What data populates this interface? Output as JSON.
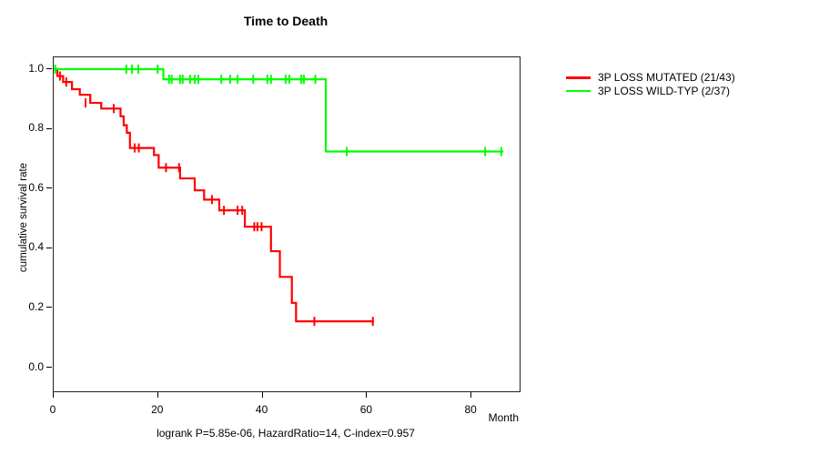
{
  "title": "Time to Death",
  "axes": {
    "x_label": "Month",
    "y_label": "cumulative survival rate",
    "x_ticks": [
      0,
      20,
      40,
      60,
      80
    ],
    "y_ticks": [
      "0.0",
      "0.2",
      "0.4",
      "0.6",
      "0.8",
      "1.0"
    ]
  },
  "legend": [
    {
      "label": "3P LOSS MUTATED (21/43)",
      "color": "#ff0000"
    },
    {
      "label": "3P LOSS WILD-TYP (2/37)",
      "color": "#00ff00"
    }
  ],
  "caption": "logrank P=5.85e-06, HazardRatio=14, C-index=0.957",
  "chart_data": {
    "type": "line",
    "subtype": "kaplan-meier-step",
    "title": "Time to Death",
    "xlabel": "Month",
    "ylabel": "cumulative survival rate",
    "xlim": [
      0,
      89
    ],
    "ylim": [
      0.0,
      1.0
    ],
    "grid": false,
    "legend_position": "right-outside",
    "annotation": "logrank P=5.85e-06, HazardRatio=14, C-index=0.957",
    "series": [
      {
        "name": "3P LOSS MUTATED (21/43)",
        "color": "#ff0000",
        "n": 43,
        "events": 21,
        "steps": [
          [
            0,
            1.0
          ],
          [
            0.7,
            0.977
          ],
          [
            1.8,
            0.957
          ],
          [
            3.5,
            0.933
          ],
          [
            5.0,
            0.914
          ],
          [
            7.0,
            0.887
          ],
          [
            9.1,
            0.868
          ],
          [
            12.8,
            0.842
          ],
          [
            13.4,
            0.812
          ],
          [
            14.0,
            0.787
          ],
          [
            14.6,
            0.736
          ],
          [
            19.2,
            0.712
          ],
          [
            20.1,
            0.67
          ],
          [
            24.2,
            0.634
          ],
          [
            27.0,
            0.594
          ],
          [
            28.8,
            0.563
          ],
          [
            31.7,
            0.527
          ],
          [
            36.6,
            0.472
          ],
          [
            41.6,
            0.39
          ],
          [
            43.3,
            0.304
          ],
          [
            45.6,
            0.217
          ],
          [
            46.4,
            0.155
          ]
        ],
        "end_time": 61.3,
        "censor_marks": [
          [
            1.2,
            0.977
          ],
          [
            2.4,
            0.957
          ],
          [
            6.1,
            0.887
          ],
          [
            11.5,
            0.868
          ],
          [
            15.5,
            0.736
          ],
          [
            16.3,
            0.736
          ],
          [
            21.5,
            0.67
          ],
          [
            24.0,
            0.67
          ],
          [
            30.3,
            0.563
          ],
          [
            32.6,
            0.527
          ],
          [
            35.2,
            0.527
          ],
          [
            36.1,
            0.527
          ],
          [
            38.4,
            0.472
          ],
          [
            39.0,
            0.472
          ],
          [
            39.8,
            0.472
          ],
          [
            49.9,
            0.155
          ],
          [
            61.1,
            0.155
          ]
        ]
      },
      {
        "name": "3P LOSS WILD-TYP (2/37)",
        "color": "#00ff00",
        "n": 37,
        "events": 2,
        "steps": [
          [
            0,
            1.0
          ],
          [
            21.0,
            0.966
          ],
          [
            52.1,
            0.724
          ]
        ],
        "end_time": 86.1,
        "censor_marks": [
          [
            0.3,
            1.0
          ],
          [
            13.9,
            1.0
          ],
          [
            15.0,
            1.0
          ],
          [
            16.2,
            1.0
          ],
          [
            19.9,
            1.0
          ],
          [
            22.1,
            0.966
          ],
          [
            22.6,
            0.966
          ],
          [
            24.2,
            0.966
          ],
          [
            24.7,
            0.966
          ],
          [
            26.1,
            0.966
          ],
          [
            27.0,
            0.966
          ],
          [
            27.7,
            0.966
          ],
          [
            32.1,
            0.966
          ],
          [
            33.8,
            0.966
          ],
          [
            35.2,
            0.966
          ],
          [
            38.2,
            0.966
          ],
          [
            40.9,
            0.966
          ],
          [
            41.6,
            0.966
          ],
          [
            44.4,
            0.966
          ],
          [
            45.1,
            0.966
          ],
          [
            47.4,
            0.966
          ],
          [
            47.9,
            0.966
          ],
          [
            50.1,
            0.966
          ],
          [
            56.1,
            0.724
          ],
          [
            82.6,
            0.724
          ],
          [
            85.7,
            0.724
          ]
        ]
      }
    ]
  }
}
